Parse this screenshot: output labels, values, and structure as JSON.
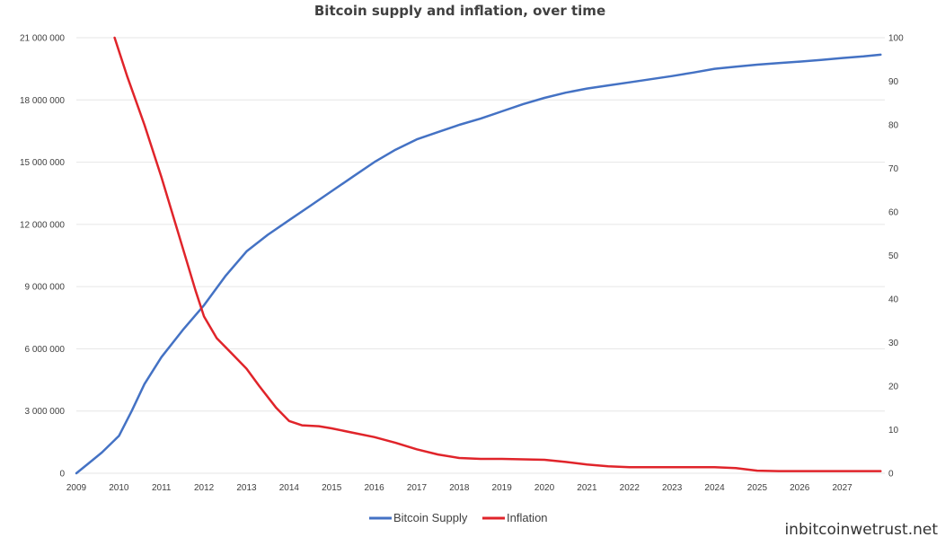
{
  "chart_data": {
    "type": "line",
    "title": "Bitcoin supply and inflation, over time",
    "x_ticks": [
      "2009",
      "2010",
      "2011",
      "2012",
      "2013",
      "2014",
      "2015",
      "2016",
      "2017",
      "2018",
      "2019",
      "2020",
      "2021",
      "2022",
      "2023",
      "2024",
      "2025",
      "2026",
      "2027"
    ],
    "xlim": [
      2009,
      2028
    ],
    "y_left": {
      "lim": [
        0,
        21000000
      ],
      "ticks": [
        0,
        3000000,
        6000000,
        9000000,
        12000000,
        15000000,
        18000000,
        21000000
      ],
      "tick_labels": [
        "0",
        "3 000 000",
        "6 000 000",
        "9 000 000",
        "12 000 000",
        "15 000 000",
        "18 000 000",
        "21 000 000"
      ]
    },
    "y_right": {
      "lim": [
        0,
        100
      ],
      "ticks": [
        0,
        10,
        20,
        30,
        40,
        50,
        60,
        70,
        80,
        90,
        100
      ],
      "tick_labels": [
        "0",
        "10",
        "20",
        "30",
        "40",
        "50",
        "60",
        "70",
        "80",
        "90",
        "100"
      ]
    },
    "grid": true,
    "legend_position": "bottom",
    "series": [
      {
        "name": "Bitcoin Supply",
        "axis": "left",
        "color": "#4472c4",
        "x": [
          2009,
          2009.3,
          2009.6,
          2010,
          2010.3,
          2010.6,
          2011,
          2011.5,
          2012,
          2012.5,
          2013,
          2013.5,
          2014,
          2014.5,
          2015,
          2015.5,
          2016,
          2016.5,
          2017,
          2017.5,
          2018,
          2018.5,
          2019,
          2019.5,
          2020,
          2020.5,
          2021,
          2021.5,
          2022,
          2022.5,
          2023,
          2023.5,
          2024,
          2024.5,
          2025,
          2025.5,
          2026,
          2026.5,
          2027,
          2027.5,
          2027.9
        ],
        "values": [
          0,
          500000,
          1000000,
          1800000,
          3000000,
          4300000,
          5600000,
          6900000,
          8100000,
          9500000,
          10700000,
          11500000,
          12200000,
          12900000,
          13600000,
          14300000,
          15000000,
          15600000,
          16100000,
          16450000,
          16800000,
          17100000,
          17450000,
          17800000,
          18100000,
          18350000,
          18550000,
          18700000,
          18850000,
          19000000,
          19150000,
          19320000,
          19500000,
          19600000,
          19700000,
          19780000,
          19850000,
          19930000,
          20020000,
          20100000,
          20180000
        ]
      },
      {
        "name": "Inflation",
        "axis": "right",
        "color": "#e0242a",
        "x": [
          2009.9,
          2010.2,
          2010.6,
          2011,
          2011.4,
          2011.8,
          2012,
          2012.3,
          2012.7,
          2013,
          2013.3,
          2013.7,
          2014,
          2014.3,
          2014.7,
          2015,
          2015.5,
          2016,
          2016.5,
          2017,
          2017.5,
          2018,
          2018.5,
          2019,
          2019.5,
          2020,
          2020.5,
          2021,
          2021.5,
          2022,
          2022.5,
          2023,
          2023.5,
          2024,
          2024.5,
          2025,
          2025.5,
          2026,
          2026.5,
          2027,
          2027.9
        ],
        "values": [
          100,
          91,
          80,
          68,
          55,
          42,
          36,
          31,
          27,
          24,
          20,
          15,
          12,
          11,
          10.8,
          10.3,
          9.3,
          8.3,
          7,
          5.5,
          4.3,
          3.5,
          3.3,
          3.3,
          3.2,
          3.1,
          2.6,
          2,
          1.6,
          1.4,
          1.4,
          1.4,
          1.4,
          1.4,
          1.2,
          0.6,
          0.5,
          0.5,
          0.5,
          0.5,
          0.5
        ]
      }
    ]
  },
  "watermark": "inbitcoinwetrust.net"
}
